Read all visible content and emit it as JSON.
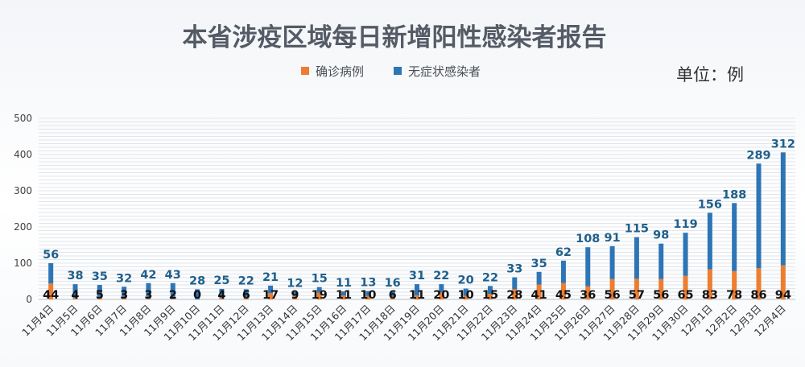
{
  "chart_data": {
    "type": "bar",
    "stacked": true,
    "title": "本省涉疫区域每日新增阳性感染者报告",
    "unit_label": "单位：例",
    "legend_position": "top-center",
    "grid": true,
    "ylim": [
      0,
      500
    ],
    "yticks": [
      0,
      100,
      200,
      300,
      400,
      500
    ],
    "categories": [
      "11月4日",
      "11月5日",
      "11月6日",
      "11月7日",
      "11月8日",
      "11月9日",
      "11月10日",
      "11月11日",
      "11月12日",
      "11月13日",
      "11月14日",
      "11月15日",
      "11月16日",
      "11月17日",
      "11月18日",
      "11月19日",
      "11月20日",
      "11月21日",
      "11月22日",
      "11月23日",
      "11月24日",
      "11月25日",
      "11月26日",
      "11月27日",
      "11月28日",
      "11月29日",
      "11月30日",
      "12月1日",
      "12月2日",
      "12月3日",
      "12月4日"
    ],
    "series": [
      {
        "name": "确诊病例",
        "color": "#ed7d31",
        "values": [
          44,
          4,
          5,
          3,
          3,
          2,
          0,
          4,
          6,
          17,
          9,
          19,
          11,
          10,
          6,
          11,
          20,
          10,
          15,
          28,
          41,
          45,
          36,
          56,
          57,
          56,
          65,
          83,
          78,
          86,
          94
        ]
      },
      {
        "name": "无症状感染者",
        "color": "#2e75b6",
        "values": [
          56,
          38,
          35,
          32,
          42,
          43,
          28,
          25,
          22,
          21,
          12,
          15,
          11,
          13,
          16,
          31,
          22,
          20,
          22,
          33,
          35,
          62,
          108,
          91,
          115,
          98,
          119,
          156,
          188,
          289,
          312
        ]
      }
    ]
  }
}
